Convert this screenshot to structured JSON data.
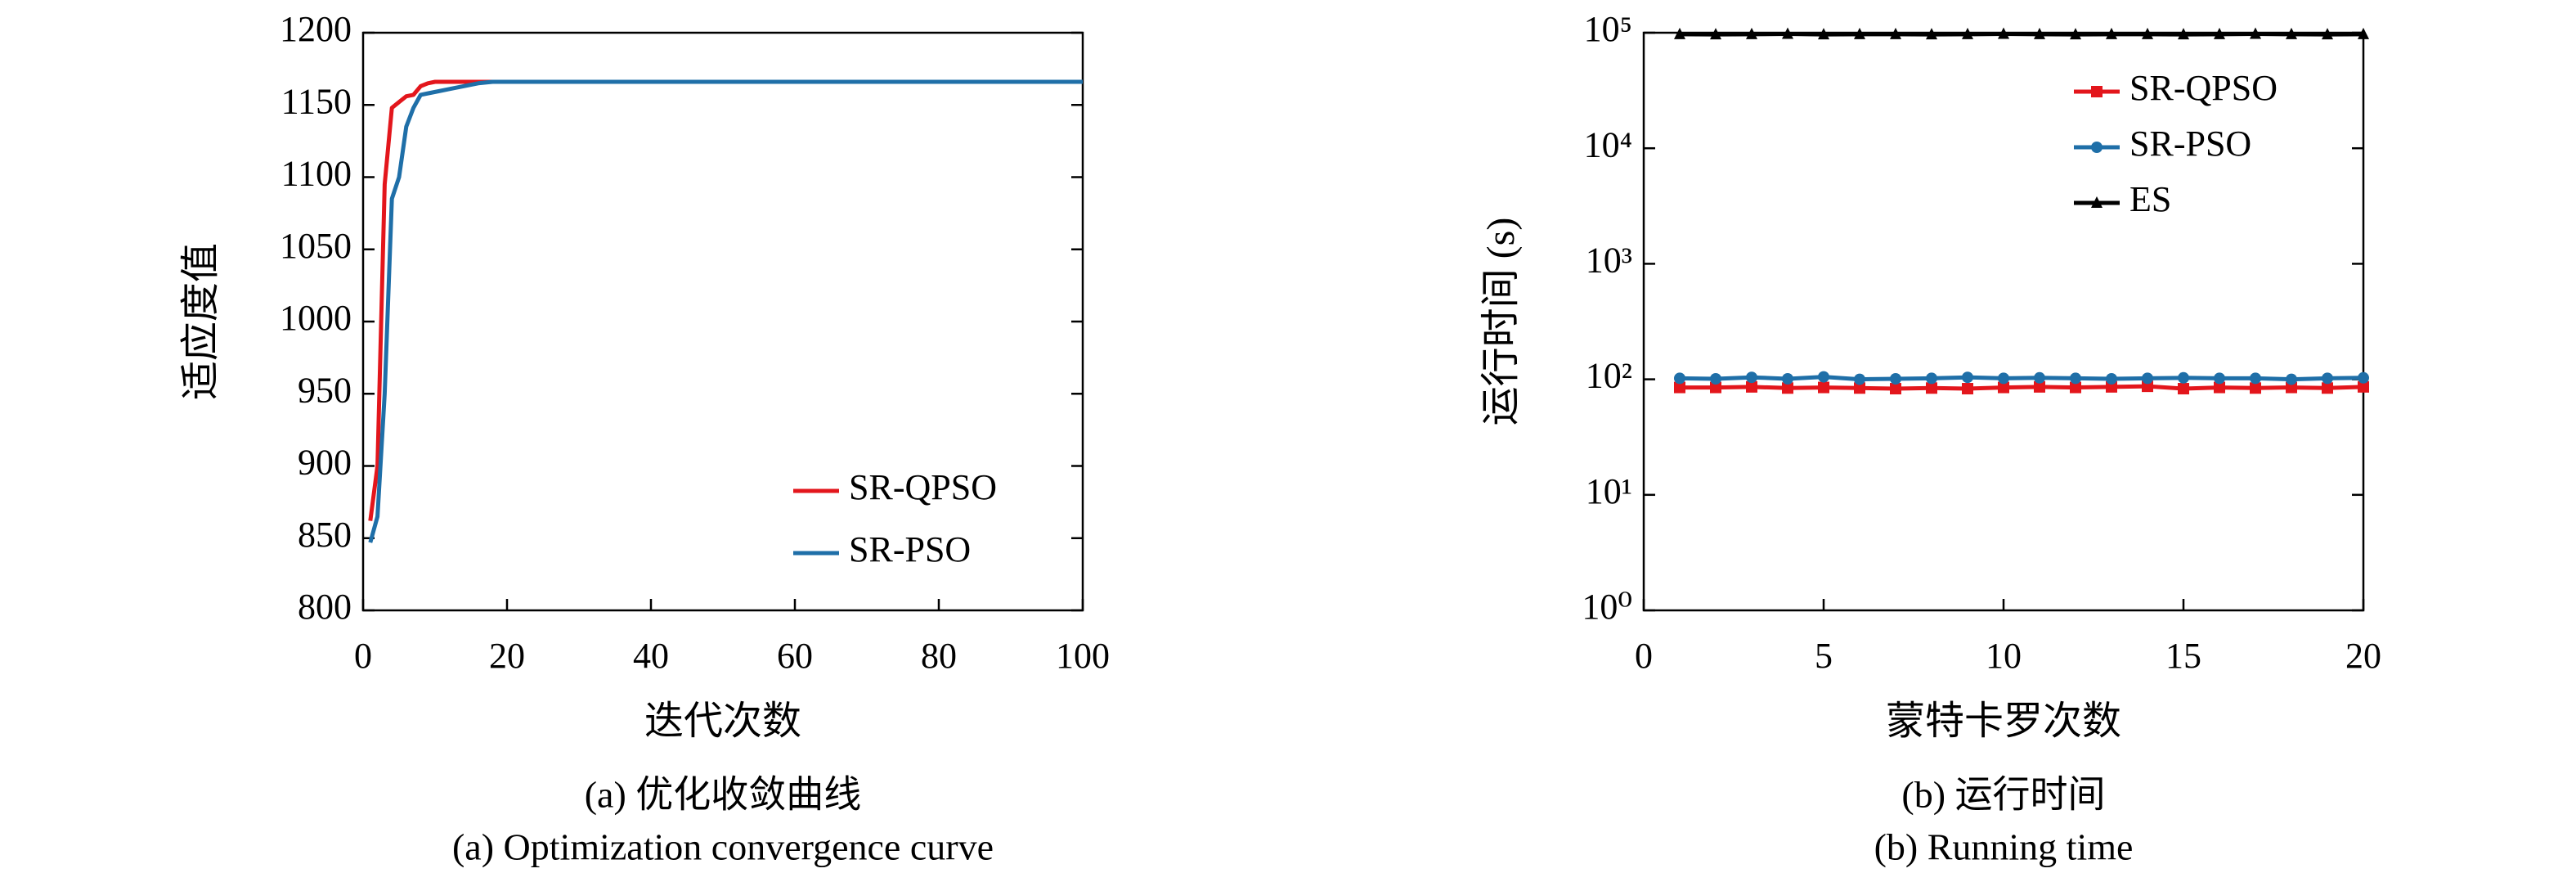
{
  "chart_data": [
    {
      "type": "line",
      "xlabel": "迭代次数",
      "ylabel": "适应度值",
      "caption": "(a) 优化收敛曲线",
      "caption_en": "(a) Optimization convergence curve",
      "x": [
        1,
        2,
        3,
        4,
        5,
        6,
        7,
        8,
        9,
        10,
        12,
        14,
        16,
        18,
        20,
        100
      ],
      "series": [
        {
          "name": "SR-QPSO",
          "color": "#e3161c",
          "values": [
            862,
            900,
            1095,
            1148,
            1152,
            1156,
            1157,
            1163,
            1165,
            1166,
            1166,
            1166,
            1166,
            1166,
            1166,
            1166
          ]
        },
        {
          "name": "SR-PSO",
          "color": "#1f6fa8",
          "values": [
            847,
            865,
            950,
            1085,
            1100,
            1135,
            1148,
            1157,
            1158,
            1159,
            1161,
            1163,
            1165,
            1166,
            1166,
            1166
          ]
        }
      ],
      "xlim": [
        0,
        100
      ],
      "xticks": [
        0,
        20,
        40,
        60,
        80,
        100
      ],
      "ylim": [
        800,
        1200
      ],
      "yticks": [
        800,
        850,
        900,
        950,
        1000,
        1050,
        1100,
        1150,
        1200
      ],
      "legend": "lower right"
    },
    {
      "type": "line",
      "xlabel": "蒙特卡罗次数",
      "ylabel": "运行时间 (s)",
      "caption": "(b) 运行时间",
      "caption_en": "(b) Running time",
      "x": [
        1,
        2,
        3,
        4,
        5,
        6,
        7,
        8,
        9,
        10,
        11,
        12,
        13,
        14,
        15,
        16,
        17,
        18,
        19,
        20
      ],
      "series": [
        {
          "name": "SR-QPSO",
          "color": "#e3161c",
          "marker": "square",
          "values": [
            85,
            85,
            86,
            84,
            85,
            84,
            83,
            84,
            83,
            85,
            86,
            85,
            86,
            87,
            83,
            85,
            84,
            85,
            84,
            86
          ]
        },
        {
          "name": "SR-PSO",
          "color": "#1f6fa8",
          "marker": "circle",
          "values": [
            102,
            101,
            104,
            101,
            105,
            100,
            101,
            102,
            104,
            102,
            103,
            102,
            101,
            102,
            103,
            102,
            102,
            100,
            102,
            103
          ]
        },
        {
          "name": "ES",
          "color": "#000000",
          "marker": "triangle",
          "values": [
            97000,
            96500,
            97000,
            97500,
            96500,
            97000,
            97000,
            96500,
            97000,
            97500,
            97000,
            96500,
            97000,
            97000,
            96500,
            97000,
            97500,
            97000,
            96500,
            97000
          ]
        }
      ],
      "xlim": [
        0,
        20
      ],
      "xticks": [
        0,
        5,
        10,
        15,
        20
      ],
      "ylim": [
        1,
        100000
      ],
      "log_y": true,
      "yticks": [
        {
          "value": 1,
          "label": "10⁰"
        },
        {
          "value": 10,
          "label": "10¹"
        },
        {
          "value": 100,
          "label": "10²"
        },
        {
          "value": 1000,
          "label": "10³"
        },
        {
          "value": 10000,
          "label": "10⁴"
        },
        {
          "value": 100000,
          "label": "10⁵"
        }
      ],
      "legend": "upper right"
    }
  ]
}
